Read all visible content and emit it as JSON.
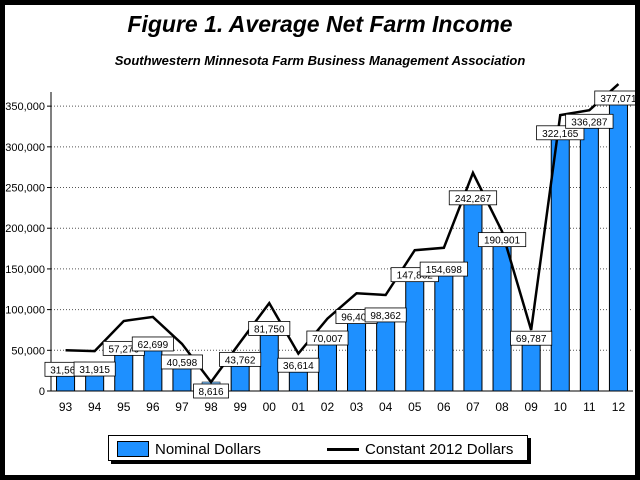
{
  "title": "Figure 1. Average Net Farm Income",
  "subtitle": "Southwestern Minnesota Farm Business Management Association",
  "colors": {
    "bar": "#1e90ff",
    "bar_edge": "#000000",
    "line": "#000000",
    "label_bg": "#ffffff"
  },
  "chart_data": {
    "type": "bar",
    "categories": [
      "93",
      "94",
      "95",
      "96",
      "97",
      "98",
      "99",
      "00",
      "01",
      "02",
      "03",
      "04",
      "05",
      "06",
      "07",
      "08",
      "09",
      "10",
      "11",
      "12"
    ],
    "series": [
      {
        "name": "Nominal Dollars",
        "kind": "bar",
        "values": [
          31567,
          31915,
          57276,
          62699,
          40598,
          8616,
          43762,
          81750,
          36614,
          70007,
          96404,
          98362,
          147862,
          154698,
          242267,
          190901,
          69787,
          322165,
          336287,
          377071
        ],
        "labels": [
          "31,567",
          "31,915",
          "57,276",
          "62,699",
          "40,598",
          "8,616",
          "43,762",
          "81,750",
          "36,614",
          "70,007",
          "96,404",
          "98,362",
          "147,862",
          "154,698",
          "242,267",
          "190,901",
          "69,787",
          "322,165",
          "336,287",
          "377,071"
        ]
      },
      {
        "name": "Constant 2012 Dollars",
        "kind": "line",
        "values": [
          50000,
          49000,
          86000,
          91000,
          58000,
          11000,
          60000,
          108000,
          46000,
          89000,
          120000,
          118000,
          173000,
          176000,
          268000,
          196000,
          75000,
          339000,
          345000,
          377071
        ]
      }
    ],
    "ylim": [
      0,
      360000
    ],
    "yticks": [
      "0",
      "50,000",
      "100,000",
      "150,000",
      "200,000",
      "250,000",
      "300,000",
      "350,000"
    ],
    "ytick_values": [
      0,
      50000,
      100000,
      150000,
      200000,
      250000,
      300000,
      350000
    ],
    "grid": "horizontal dotted",
    "legend": "bottom"
  },
  "legend": {
    "bar_label": "Nominal Dollars",
    "line_label": "Constant 2012 Dollars"
  }
}
